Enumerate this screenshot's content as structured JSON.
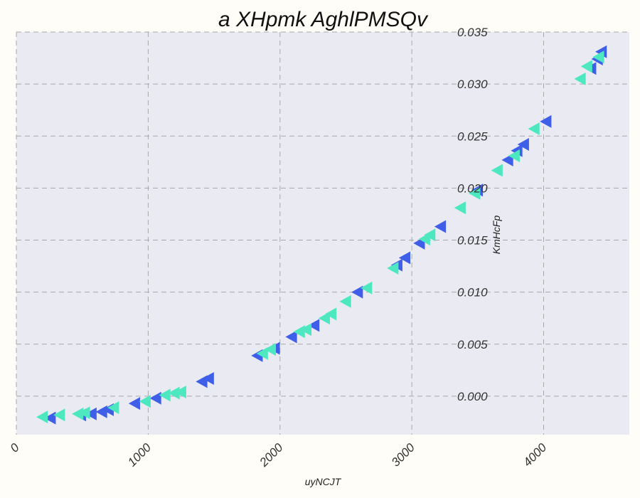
{
  "chart_data": {
    "type": "scatter",
    "title": "a XHpmk AghlPMSQv",
    "xlabel": "uyNCJT",
    "ylabel": "KmHcFp",
    "xlim": [
      0,
      4650
    ],
    "ylim": [
      -0.0037,
      0.035
    ],
    "x_ticks": [
      0,
      1000,
      2000,
      3000,
      4000
    ],
    "y_ticks": [
      0.0,
      0.005,
      0.01,
      0.015,
      0.02,
      0.025,
      0.03,
      0.035
    ],
    "x_tick_labels": [
      "0",
      "1000",
      "2000",
      "3000",
      "4000"
    ],
    "y_tick_labels": [
      "0.000",
      "0.005",
      "0.010",
      "0.015",
      "0.020",
      "0.025",
      "0.030",
      "0.035"
    ],
    "grid": true,
    "marker": "triangle-left",
    "colors": {
      "plot_bg": "#eaeaf2",
      "page_bg": "#fefdf8"
    },
    "series": [
      {
        "color": "#3f5fe8",
        "x": [
          260,
          490,
          570,
          650,
          700,
          900,
          1060,
          1410,
          1460,
          1830,
          1960,
          2090,
          2260,
          2590,
          2890,
          2950,
          3060,
          3220,
          3500,
          3730,
          3800,
          3850,
          4020,
          4360,
          4410,
          4440
        ],
        "y": [
          -0.0021,
          -0.0018,
          -0.0017,
          -0.0015,
          -0.0013,
          -0.0007,
          -0.0002,
          0.0014,
          0.0017,
          0.0039,
          0.0046,
          0.0057,
          0.0068,
          0.01,
          0.0126,
          0.0133,
          0.0147,
          0.0163,
          0.0198,
          0.0227,
          0.0236,
          0.0242,
          0.0264,
          0.0315,
          0.0324,
          0.0331
        ]
      },
      {
        "color": "#4ee8c0",
        "x": [
          200,
          330,
          470,
          520,
          740,
          980,
          1130,
          1200,
          1250,
          1870,
          1930,
          2150,
          2200,
          2340,
          2390,
          2500,
          2660,
          2860,
          3100,
          3140,
          3370,
          3480,
          3650,
          3780,
          3930,
          4280,
          4330,
          4420
        ],
        "y": [
          -0.002,
          -0.0018,
          -0.0017,
          -0.0016,
          -0.0011,
          -0.0005,
          0.0001,
          0.0003,
          0.0004,
          0.0041,
          0.0045,
          0.0062,
          0.0064,
          0.0075,
          0.0079,
          0.0091,
          0.0104,
          0.0123,
          0.0151,
          0.0155,
          0.0181,
          0.0195,
          0.0217,
          0.0231,
          0.0257,
          0.0305,
          0.0317,
          0.0326
        ]
      }
    ]
  }
}
